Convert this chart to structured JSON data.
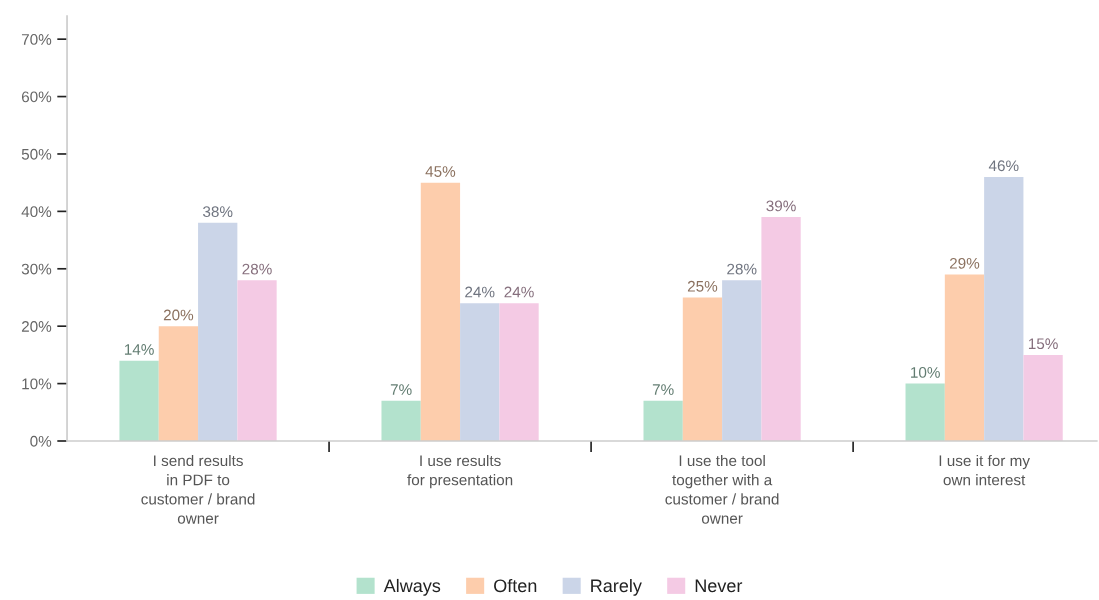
{
  "chart_data": {
    "type": "bar",
    "categories": [
      "I send results\nin PDF to\ncustomer / brand\nowner",
      "I use results\nfor presentation",
      "I use the tool\ntogether with a\ncustomer / brand\nowner",
      "I use it for my\nown interest"
    ],
    "series": [
      {
        "name": "Always",
        "color": "#b3e2cd",
        "values": [
          14,
          7,
          7,
          10
        ],
        "value_labels": [
          "14%",
          "7%",
          "7%",
          "10%"
        ]
      },
      {
        "name": "Often",
        "color": "#fdcdac",
        "values": [
          20,
          45,
          25,
          29
        ],
        "value_labels": [
          "20%",
          "45%",
          "25%",
          "29%"
        ]
      },
      {
        "name": "Rarely",
        "color": "#cbd5e8",
        "values": [
          38,
          24,
          28,
          46
        ],
        "value_labels": [
          "38%",
          "24%",
          "28%",
          "46%"
        ]
      },
      {
        "name": "Never",
        "color": "#f4cae4",
        "values": [
          28,
          24,
          39,
          15
        ],
        "value_labels": [
          "28%",
          "24%",
          "39%",
          "15%"
        ]
      }
    ],
    "ylim": [
      0,
      74
    ],
    "yticks": [
      {
        "value": 0,
        "label": "0%"
      },
      {
        "value": 10,
        "label": "10%"
      },
      {
        "value": 20,
        "label": "20%"
      },
      {
        "value": 30,
        "label": "30%"
      },
      {
        "value": 40,
        "label": "40%"
      },
      {
        "value": 50,
        "label": "50%"
      },
      {
        "value": 60,
        "label": "60%"
      },
      {
        "value": 70,
        "label": "70%"
      }
    ],
    "grid": false,
    "legend": "bottom"
  }
}
